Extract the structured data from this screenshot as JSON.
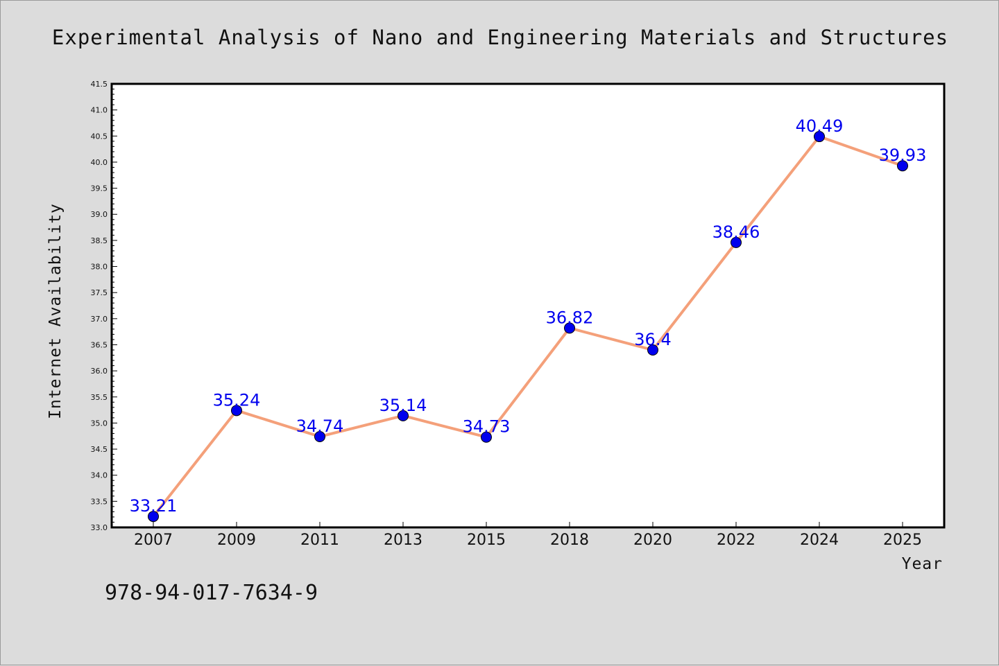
{
  "chart_data": {
    "type": "line",
    "title": "Experimental Analysis of Nano and Engineering Materials and Structures",
    "xlabel": "Year",
    "ylabel": "Internet Availability",
    "categories": [
      "2007",
      "2009",
      "2011",
      "2013",
      "2015",
      "2018",
      "2020",
      "2022",
      "2024",
      "2025"
    ],
    "series": [
      {
        "values": [
          33.21,
          35.24,
          34.74,
          35.14,
          34.73,
          36.82,
          36.4,
          38.46,
          40.49,
          39.93
        ],
        "labels": [
          "33.21",
          "35.24",
          "34.74",
          "35.14",
          "34.73",
          "36.82",
          "36.4",
          "38.46",
          "40.49",
          "39.93"
        ]
      }
    ],
    "ylim": [
      33.0,
      41.5
    ],
    "yticks": [
      "33.0",
      "33.5",
      "34.0",
      "34.5",
      "35.0",
      "35.5",
      "36.0",
      "36.5",
      "37.0",
      "37.5",
      "38.0",
      "38.5",
      "39.0",
      "39.5",
      "40.0",
      "40.5",
      "41.0",
      "41.5"
    ],
    "grid": false,
    "line_color": "#f4a07a",
    "marker_color": "#0000ee",
    "label_color": "#0000ee"
  },
  "annotation": "978-94-017-7634-9"
}
